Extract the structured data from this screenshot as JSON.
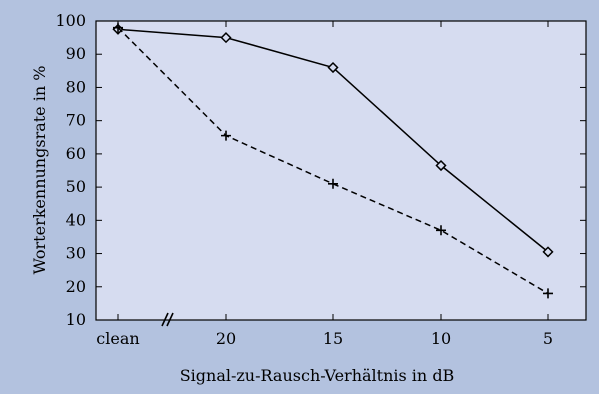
{
  "colors": {
    "page_background": "#b3c2df",
    "plot_background": "#d6dcf0",
    "axis": "#000000",
    "series": "#000000"
  },
  "chart_data": {
    "type": "line",
    "title": "",
    "xlabel": "Signal-zu-Rausch-Verhältnis in dB",
    "ylabel": "Worterkennungsrate in %",
    "categories": [
      "clean",
      "20",
      "15",
      "10",
      "5"
    ],
    "ylim": [
      10,
      100
    ],
    "yticks": [
      10,
      20,
      30,
      40,
      50,
      60,
      70,
      80,
      90,
      100
    ],
    "grid": false,
    "legend": "none",
    "axis_break": "between clean and 20 on the x-axis",
    "series": [
      {
        "marker": "diamond",
        "line_style": "solid",
        "values": [
          97.5,
          95,
          86,
          56.5,
          30.5
        ]
      },
      {
        "marker": "plus",
        "line_style": "dashed",
        "values": [
          98,
          65.5,
          51,
          37,
          18
        ]
      }
    ]
  }
}
